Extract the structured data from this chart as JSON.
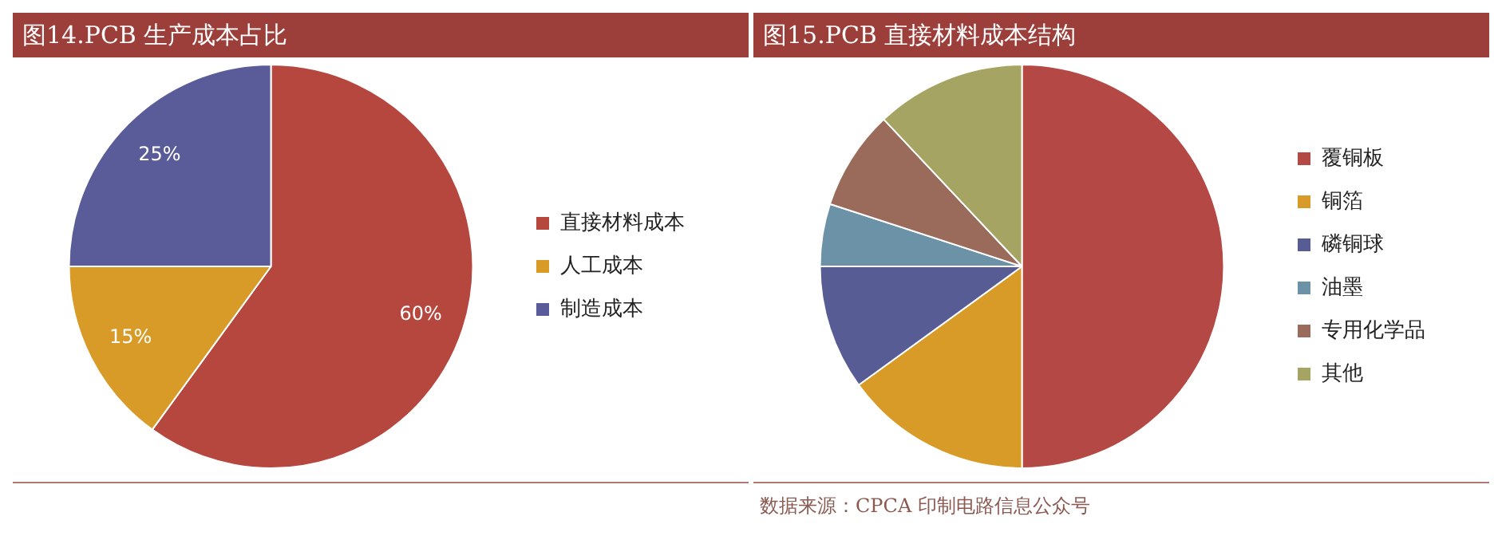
{
  "chart_data": [
    {
      "type": "pie",
      "title": "图14.PCB 生产成本占比",
      "categories": [
        "直接材料成本",
        "人工成本",
        "制造成本"
      ],
      "values": [
        60,
        15,
        25
      ],
      "value_labels": [
        "60%",
        "15%",
        "25%"
      ],
      "colors": [
        "#b5473f",
        "#d99b27",
        "#5a5c99"
      ],
      "legend": "right"
    },
    {
      "type": "pie",
      "title": "图15.PCB 直接材料成本结构",
      "categories": [
        "覆铜板",
        "铜箔",
        "磷铜球",
        "油墨",
        "专用化学品",
        "其他"
      ],
      "values": [
        50,
        15,
        10,
        5,
        8,
        12
      ],
      "colors": [
        "#b44844",
        "#d99b27",
        "#575c94",
        "#6b92a6",
        "#9a6a5a",
        "#a6a462"
      ],
      "legend": "right",
      "annotations": [
        "数据来源：CPCA 印制电路信息公众号"
      ]
    }
  ]
}
